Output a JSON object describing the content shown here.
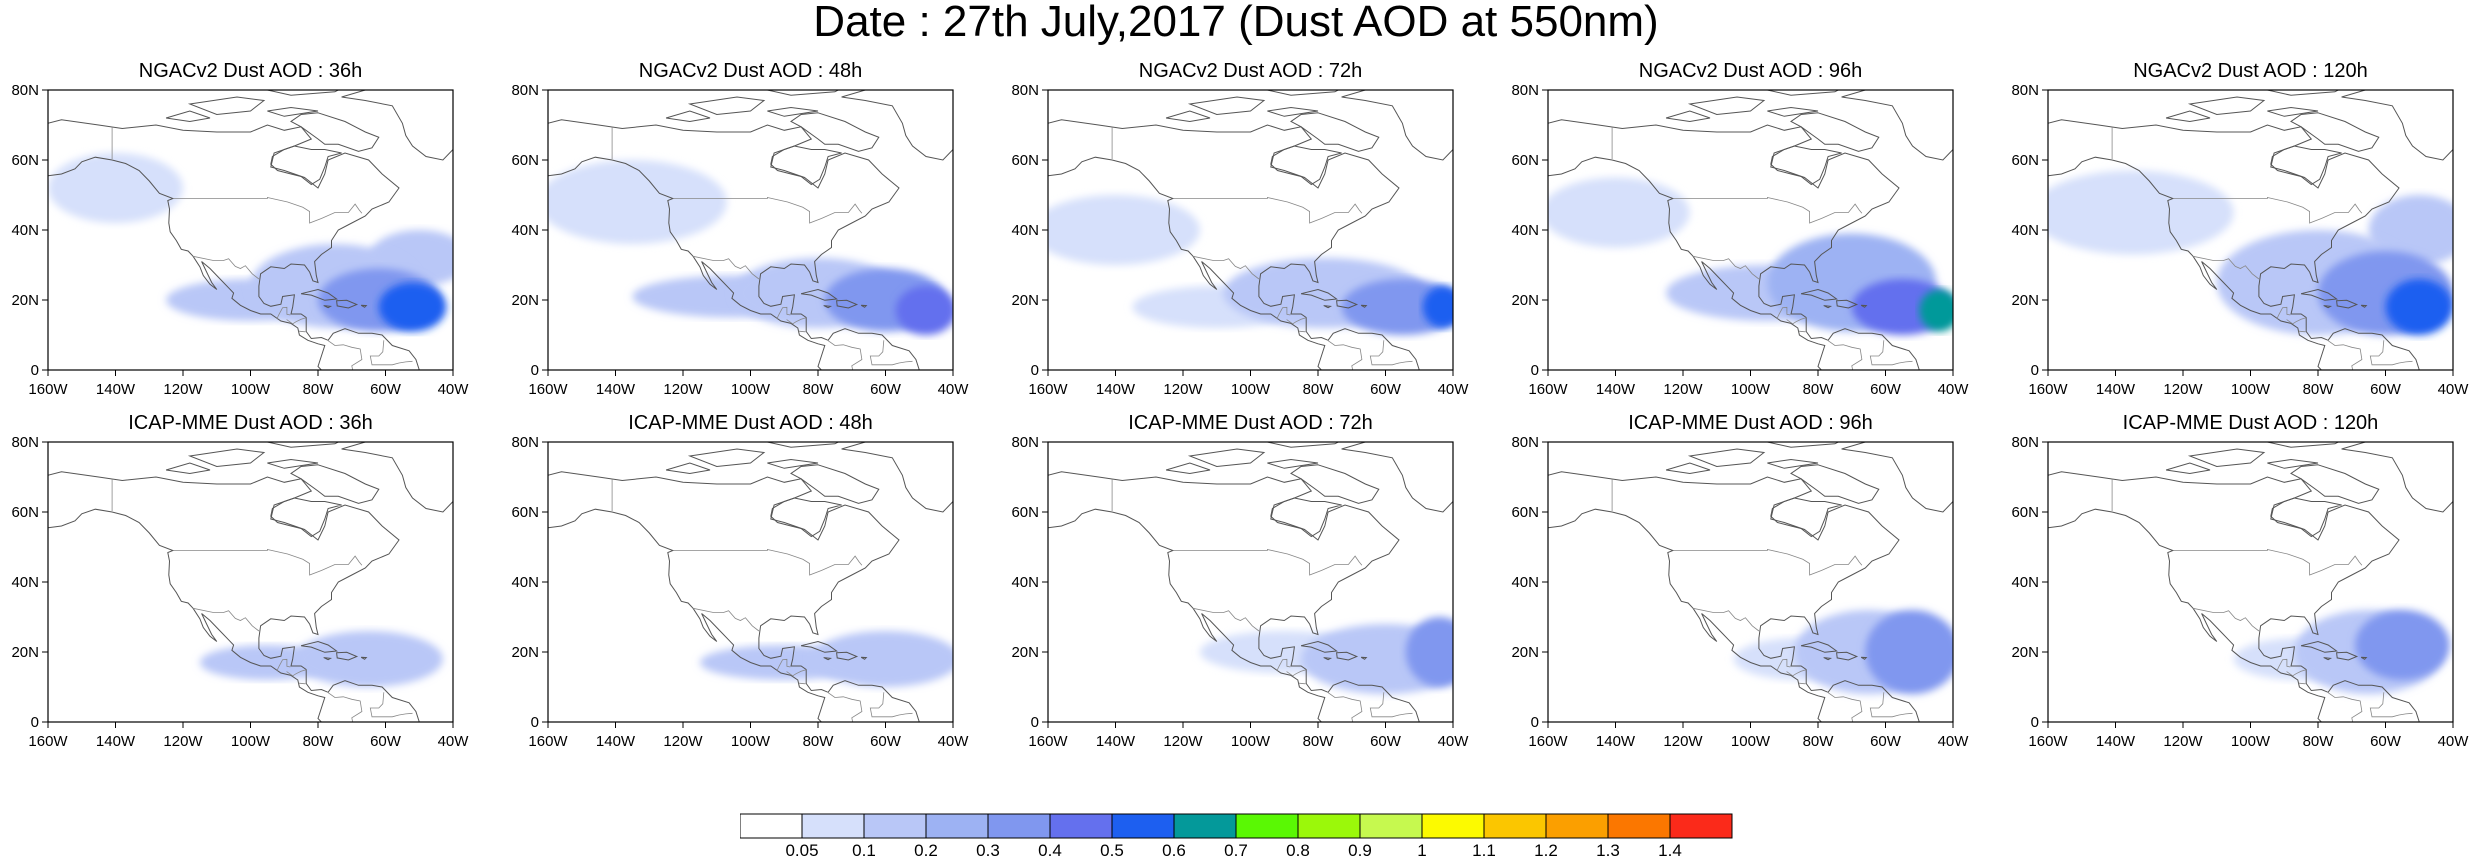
{
  "title": "Date : 27th July,2017 (Dust AOD at 550nm)",
  "axes": {
    "lon_ticks": [
      "160W",
      "140W",
      "120W",
      "100W",
      "80W",
      "60W",
      "40W"
    ],
    "lat_ticks": [
      "80N",
      "60N",
      "40N",
      "20N",
      "0"
    ],
    "lon_range": [
      -160,
      -40
    ],
    "lat_range": [
      0,
      80
    ]
  },
  "panels": [
    {
      "title": "NGACv2 Dust AOD : 36h",
      "blobs": [
        [
          -52,
          18,
          10,
          7,
          0.5
        ],
        [
          -62,
          20,
          18,
          9,
          0.3
        ],
        [
          -75,
          24,
          25,
          12,
          0.15
        ],
        [
          -100,
          20,
          25,
          6,
          0.1
        ],
        [
          -140,
          52,
          20,
          10,
          0.07
        ],
        [
          -50,
          32,
          15,
          8,
          0.1
        ]
      ]
    },
    {
      "title": "NGACv2 Dust AOD : 48h",
      "blobs": [
        [
          -48,
          17,
          9,
          7,
          0.45
        ],
        [
          -60,
          20,
          18,
          9,
          0.3
        ],
        [
          -80,
          22,
          25,
          10,
          0.15
        ],
        [
          -105,
          21,
          30,
          6,
          0.1
        ],
        [
          -135,
          48,
          28,
          12,
          0.07
        ]
      ]
    },
    {
      "title": "NGACv2 Dust AOD : 72h",
      "blobs": [
        [
          -43,
          18,
          6,
          6,
          0.55
        ],
        [
          -55,
          18,
          18,
          8,
          0.3
        ],
        [
          -78,
          22,
          30,
          10,
          0.15
        ],
        [
          -110,
          18,
          25,
          6,
          0.08
        ],
        [
          -140,
          40,
          25,
          10,
          0.07
        ]
      ]
    },
    {
      "title": "NGACv2 Dust AOD : 96h",
      "blobs": [
        [
          -44,
          17,
          6,
          6,
          0.65
        ],
        [
          -55,
          18,
          15,
          8,
          0.4
        ],
        [
          -70,
          25,
          25,
          14,
          0.2
        ],
        [
          -95,
          22,
          30,
          8,
          0.1
        ],
        [
          -140,
          45,
          22,
          10,
          0.07
        ]
      ]
    },
    {
      "title": "NGACv2 Dust AOD : 120h",
      "blobs": [
        [
          -50,
          18,
          10,
          8,
          0.5
        ],
        [
          -60,
          22,
          20,
          12,
          0.3
        ],
        [
          -80,
          25,
          30,
          15,
          0.15
        ],
        [
          -135,
          45,
          30,
          12,
          0.07
        ],
        [
          -50,
          40,
          15,
          10,
          0.1
        ]
      ]
    },
    {
      "title": "ICAP-MME Dust AOD : 36h",
      "blobs": [
        [
          -65,
          18,
          22,
          8,
          0.15
        ],
        [
          -95,
          17,
          20,
          5,
          0.1
        ]
      ]
    },
    {
      "title": "ICAP-MME Dust AOD : 48h",
      "blobs": [
        [
          -60,
          18,
          22,
          8,
          0.15
        ],
        [
          -90,
          17,
          25,
          5,
          0.1
        ]
      ]
    },
    {
      "title": "ICAP-MME Dust AOD : 72h",
      "blobs": [
        [
          -44,
          20,
          10,
          10,
          0.3
        ],
        [
          -60,
          18,
          25,
          10,
          0.15
        ],
        [
          -90,
          20,
          25,
          6,
          0.07
        ]
      ]
    },
    {
      "title": "ICAP-MME Dust AOD : 96h",
      "blobs": [
        [
          -52,
          20,
          14,
          12,
          0.3
        ],
        [
          -65,
          20,
          22,
          12,
          0.15
        ],
        [
          -85,
          18,
          20,
          6,
          0.07
        ]
      ]
    },
    {
      "title": "ICAP-MME Dust AOD : 120h",
      "blobs": [
        [
          -55,
          22,
          14,
          10,
          0.3
        ],
        [
          -65,
          20,
          22,
          12,
          0.15
        ],
        [
          -85,
          18,
          20,
          6,
          0.07
        ]
      ]
    }
  ],
  "colorbar": {
    "colors": [
      "#ffffff",
      "#d6e0fb",
      "#b9c7f7",
      "#9db2f3",
      "#8097ef",
      "#6470ee",
      "#1d5ff0",
      "#04999a",
      "#5af804",
      "#9bf80a",
      "#c6f94f",
      "#fcfa00",
      "#fbc600",
      "#fb9f00",
      "#fb7700",
      "#fb2a1a"
    ],
    "labels": [
      "0.05",
      "0.1",
      "0.2",
      "0.3",
      "0.4",
      "0.5",
      "0.6",
      "0.7",
      "0.8",
      "0.9",
      "1",
      "1.1",
      "1.2",
      "1.3",
      "1.4"
    ]
  }
}
